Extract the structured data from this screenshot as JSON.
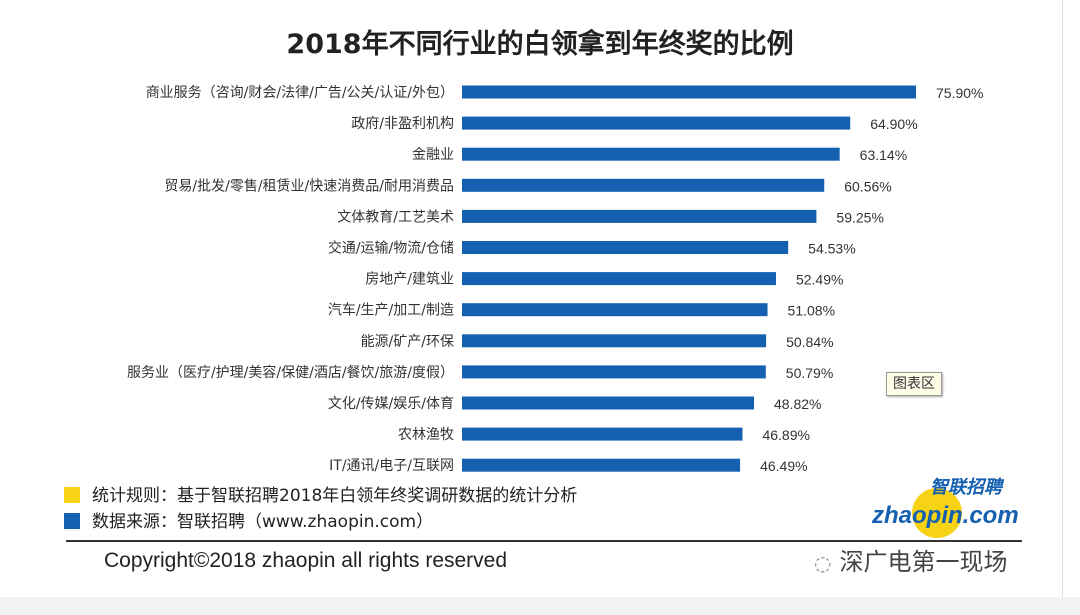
{
  "chart_data": {
    "type": "bar",
    "orientation": "horizontal",
    "title": "2018年不同行业的白领拿到年终奖的比例",
    "categories": [
      "商业服务（咨询/财会/法律/广告/公关/认证/外包）",
      "政府/非盈利机构",
      "金融业",
      "贸易/批发/零售/租赁业/快速消费品/耐用消费品",
      "文体教育/工艺美术",
      "交通/运输/物流/仓储",
      "房地产/建筑业",
      "汽车/生产/加工/制造",
      "能源/矿产/环保",
      "服务业（医疗/护理/美容/保健/酒店/餐饮/旅游/度假）",
      "文化/传媒/娱乐/体育",
      "农林渔牧",
      "IT/通讯/电子/互联网"
    ],
    "values": [
      75.9,
      64.9,
      63.14,
      60.56,
      59.25,
      54.53,
      52.49,
      51.08,
      50.84,
      50.79,
      48.82,
      46.89,
      46.49
    ],
    "data_labels": [
      "75.90%",
      "64.90%",
      "63.14%",
      "60.56%",
      "59.25%",
      "54.53%",
      "52.49%",
      "51.08%",
      "50.84%",
      "50.79%",
      "48.82%",
      "46.89%",
      "46.49%"
    ],
    "xlim": [
      0,
      100
    ],
    "grid": false,
    "bar_color": "#1560b0"
  },
  "tooltip": "图表区",
  "legend": [
    {
      "text": "统计规则：基于智联招聘2018年白领年终奖调研数据的统计分析",
      "color": "#f7d316"
    },
    {
      "text": "数据来源：智联招聘（www.zhaopin.com）",
      "color": "#1560b0"
    }
  ],
  "copyright": "Copyright©2018 zhaopin all rights reserved",
  "logo": {
    "cn": "智联招聘",
    "en": "zhaopin.com"
  },
  "watermark": "深广电第一现场"
}
